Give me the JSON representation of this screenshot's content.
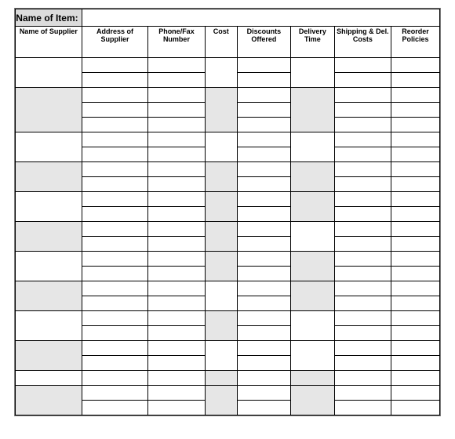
{
  "title_label": "Name of Item:",
  "title_value": "",
  "columns": [
    "Name of Supplier",
    "Address of Supplier",
    "Phone/Fax Number",
    "Cost",
    "Discounts Offered",
    "Delivery Time",
    "Shipping & Del. Costs",
    "Reorder Policies"
  ],
  "colors": {
    "header_bg": "#dcdcdc",
    "shade_bg": "#e6e6e6",
    "border": "#000000",
    "page_border": "#7a7a7a"
  },
  "row_count": 24,
  "groups": [
    {
      "start": 0,
      "span": 2,
      "col0_shade": false,
      "col3_shade": false,
      "col5_shade": false
    },
    {
      "start": 2,
      "span": 3,
      "col0_shade": true,
      "col3_shade": true,
      "col5_shade": true
    },
    {
      "start": 5,
      "span": 2,
      "col0_shade": false,
      "col3_shade": false,
      "col5_shade": false
    },
    {
      "start": 7,
      "span": 2,
      "col0_shade": true,
      "col3_shade": true,
      "col5_shade": true
    },
    {
      "start": 9,
      "span": 2,
      "col0_shade": false,
      "col3_shade": true,
      "col5_shade": true
    },
    {
      "start": 11,
      "span": 2,
      "col0_shade": true,
      "col3_shade": true,
      "col5_shade": false
    },
    {
      "start": 13,
      "span": 2,
      "col0_shade": false,
      "col3_shade": true,
      "col5_shade": true
    },
    {
      "start": 15,
      "span": 2,
      "col0_shade": true,
      "col3_shade": false,
      "col5_shade": true
    },
    {
      "start": 17,
      "span": 2,
      "col0_shade": false,
      "col3_shade": true,
      "col5_shade": false
    },
    {
      "start": 19,
      "span": 2,
      "col0_shade": true,
      "col3_shade": false,
      "col5_shade": false
    },
    {
      "start": 21,
      "span": 1,
      "col0_shade": false,
      "col3_shade": true,
      "col5_shade": true
    },
    {
      "start": 22,
      "span": 2,
      "col0_shade": true,
      "col3_shade": true,
      "col5_shade": true
    }
  ]
}
